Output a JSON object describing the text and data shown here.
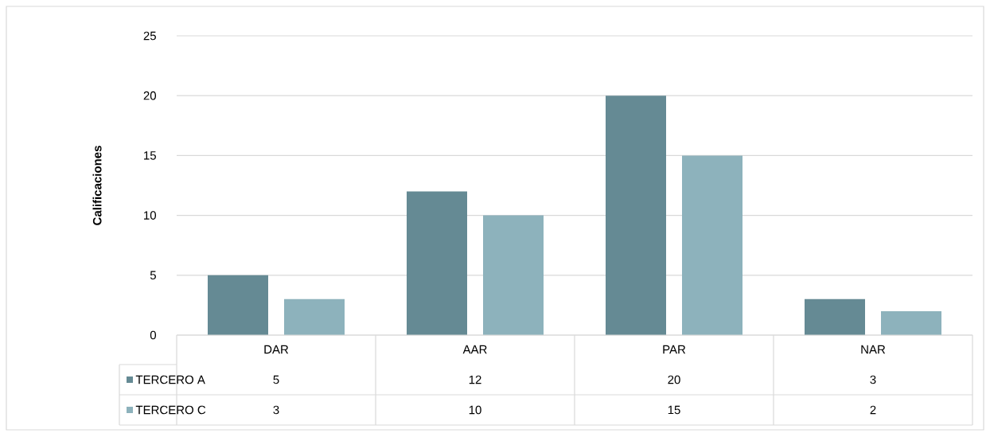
{
  "chart_data": {
    "type": "bar",
    "ylabel": "Calificaciones",
    "categories": [
      "DAR",
      "AAR",
      "PAR",
      "NAR"
    ],
    "series": [
      {
        "name": "TERCERO A",
        "color": "#658a94",
        "values": [
          5,
          12,
          20,
          3
        ]
      },
      {
        "name": "TERCERO C",
        "color": "#8db2bc",
        "values": [
          3,
          10,
          15,
          2
        ]
      }
    ],
    "ylim": [
      0,
      25
    ],
    "yticks": [
      0,
      5,
      10,
      15,
      20,
      25
    ],
    "grid": "y",
    "legend": "bottom",
    "data_labels": true
  }
}
